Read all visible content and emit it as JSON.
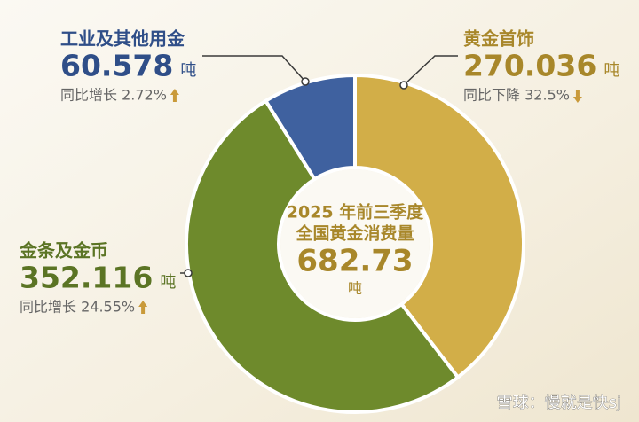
{
  "chart_data": {
    "type": "pie",
    "center_title": [
      "2025 年前三季度",
      "全国黄金消费量"
    ],
    "total": 682.73,
    "unit": "吨",
    "categories": [
      "黄金首饰",
      "金条及金币",
      "工业及其他用金"
    ],
    "values": [
      270.036,
      352.116,
      60.578
    ],
    "colors": [
      "#d2ae48",
      "#6e8a2c",
      "#3f619f"
    ],
    "annotations": [
      "同比下降 32.5%",
      "同比增长 24.55%",
      "同比增长 2.72%"
    ],
    "watermark": "雪球：慢就是快sj"
  }
}
